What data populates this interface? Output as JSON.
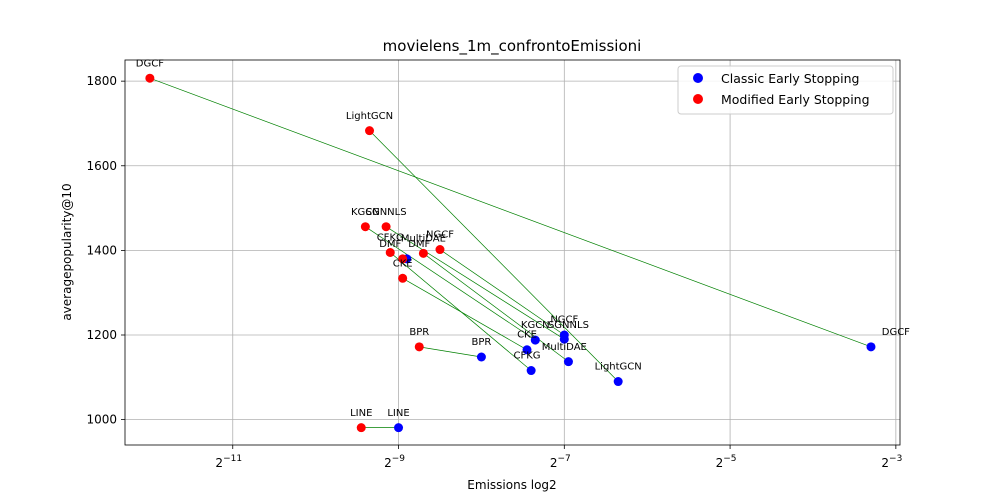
{
  "chart_data": {
    "type": "scatter",
    "title": "movielens_1m_confrontoEmissioni",
    "xlabel": "Emissions log2",
    "ylabel": "averagepopularity@10",
    "x_scale": "log2",
    "xlim_log2": [
      -12.3,
      -2.95
    ],
    "ylim": [
      940,
      1850
    ],
    "x_ticks": [
      {
        "label": "2",
        "exp": "−11",
        "value": -11
      },
      {
        "label": "2",
        "exp": "−9",
        "value": -9
      },
      {
        "label": "2",
        "exp": "−7",
        "value": -7
      },
      {
        "label": "2",
        "exp": "−5",
        "value": -5
      },
      {
        "label": "2",
        "exp": "−3",
        "value": -3
      }
    ],
    "y_ticks": [
      {
        "label": "1000",
        "value": 1000
      },
      {
        "label": "1200",
        "value": 1200
      },
      {
        "label": "1400",
        "value": 1400
      },
      {
        "label": "1600",
        "value": 1600
      },
      {
        "label": "1800",
        "value": 1800
      }
    ],
    "grid": true,
    "legend_position": "top-right",
    "colors": {
      "classic": "#0000ff",
      "modified": "#ff0000",
      "connector": "#008000"
    },
    "series": [
      {
        "name": "Classic Early Stopping",
        "color": "#0000ff",
        "points": [
          {
            "label": "DGCF",
            "log2_x": -3.3,
            "y": 1172
          },
          {
            "label": "LightGCN",
            "log2_x": -6.35,
            "y": 1090
          },
          {
            "label": "NGCF",
            "log2_x": -7.0,
            "y": 1200
          },
          {
            "label": "KGCN",
            "log2_x": -7.35,
            "y": 1188
          },
          {
            "label": "SGNNLS",
            "log2_x": -7.0,
            "y": 1190
          },
          {
            "label": "CKE",
            "log2_x": -7.45,
            "y": 1165
          },
          {
            "label": "MultiDAE",
            "log2_x": -6.95,
            "y": 1137
          },
          {
            "label": "CFKG",
            "log2_x": -7.4,
            "y": 1116
          },
          {
            "label": "BPR",
            "log2_x": -8.0,
            "y": 1148
          },
          {
            "label": "DMF",
            "log2_x": -8.9,
            "y": 1380
          },
          {
            "label": "LINE",
            "log2_x": -9.0,
            "y": 981
          }
        ]
      },
      {
        "name": "Modified Early Stopping",
        "color": "#ff0000",
        "points": [
          {
            "label": "DGCF",
            "log2_x": -12.0,
            "y": 1807
          },
          {
            "label": "LightGCN",
            "log2_x": -9.35,
            "y": 1683
          },
          {
            "label": "NGCF",
            "log2_x": -8.5,
            "y": 1402
          },
          {
            "label": "KGCN",
            "log2_x": -9.4,
            "y": 1456
          },
          {
            "label": "SGNNLS",
            "log2_x": -9.15,
            "y": 1456
          },
          {
            "label": "CKE",
            "log2_x": -8.95,
            "y": 1334
          },
          {
            "label": "MultiDAE",
            "log2_x": -8.7,
            "y": 1393
          },
          {
            "label": "CFKG",
            "log2_x": -9.1,
            "y": 1395
          },
          {
            "label": "BPR",
            "log2_x": -8.75,
            "y": 1172
          },
          {
            "label": "DMF",
            "log2_x": -8.95,
            "y": 1380
          },
          {
            "label": "LINE",
            "log2_x": -9.45,
            "y": 981
          }
        ]
      }
    ],
    "point_labels": [
      {
        "text": "DGCF",
        "log2_x": -3.0,
        "y": 1200,
        "series": 0
      },
      {
        "text": "LightGCN",
        "log2_x": -6.35,
        "y": 1118,
        "series": 0
      },
      {
        "text": "NGCF",
        "log2_x": -7.0,
        "y": 1230,
        "series": 0
      },
      {
        "text": "KGCN",
        "log2_x": -7.35,
        "y": 1216,
        "series": 0
      },
      {
        "text": "SGNNLS",
        "log2_x": -6.95,
        "y": 1216,
        "series": 0
      },
      {
        "text": "CKE",
        "log2_x": -7.45,
        "y": 1194,
        "series": 0
      },
      {
        "text": "MultiDAE",
        "log2_x": -7.0,
        "y": 1165,
        "series": 0
      },
      {
        "text": "CFKG",
        "log2_x": -7.45,
        "y": 1144,
        "series": 0
      },
      {
        "text": "BPR",
        "log2_x": -8.0,
        "y": 1176,
        "series": 0
      },
      {
        "text": "DMF",
        "log2_x": -8.75,
        "y": 1408,
        "series": 0
      },
      {
        "text": "LINE",
        "log2_x": -9.0,
        "y": 1009,
        "series": 0
      },
      {
        "text": "DGCF",
        "log2_x": -12.0,
        "y": 1835,
        "series": 1
      },
      {
        "text": "LightGCN",
        "log2_x": -9.35,
        "y": 1711,
        "series": 1
      },
      {
        "text": "NGCF",
        "log2_x": -8.5,
        "y": 1430,
        "series": 1
      },
      {
        "text": "KGCN",
        "log2_x": -9.4,
        "y": 1484,
        "series": 1
      },
      {
        "text": "SGNNLS",
        "log2_x": -9.15,
        "y": 1484,
        "series": 1
      },
      {
        "text": "CKE",
        "log2_x": -8.95,
        "y": 1362,
        "series": 1
      },
      {
        "text": "MultiDAE",
        "log2_x": -8.7,
        "y": 1421,
        "series": 1
      },
      {
        "text": "CFKG",
        "log2_x": -9.1,
        "y": 1423,
        "series": 1
      },
      {
        "text": "BPR",
        "log2_x": -8.75,
        "y": 1200,
        "series": 1
      },
      {
        "text": "DMF",
        "log2_x": -9.1,
        "y": 1408,
        "series": 1
      },
      {
        "text": "LINE",
        "log2_x": -9.45,
        "y": 1009,
        "series": 1
      }
    ]
  }
}
